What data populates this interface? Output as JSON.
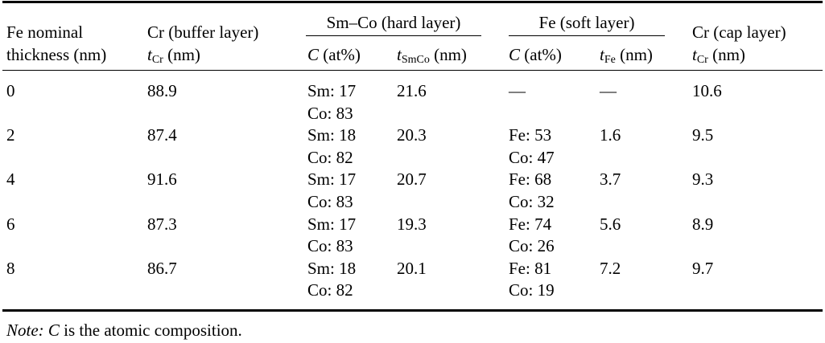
{
  "table": {
    "header": {
      "fe_thickness": [
        "Fe nominal",
        "thickness (nm)"
      ],
      "cr_buffer": {
        "title": "Cr (buffer layer)",
        "symbol": "t",
        "sub": "Cr",
        "unit": "(nm)"
      },
      "smco": {
        "title": "Sm–Co (hard layer)",
        "c_symbol": "C",
        "c_unit": "(at%)",
        "t_symbol": "t",
        "t_sub": "SmCo",
        "t_unit": "(nm)"
      },
      "fe": {
        "title": "Fe (soft layer)",
        "c_symbol": "C",
        "c_unit": "(at%)",
        "t_symbol": "t",
        "t_sub": "Fe",
        "t_unit": "(nm)"
      },
      "cr_cap": {
        "title": "Cr (cap layer)",
        "symbol": "t",
        "sub": "Cr",
        "unit": "(nm)"
      }
    },
    "rows": [
      {
        "fe_thickness": 0,
        "cr_buffer": 88.9,
        "smco_c": [
          "Sm: 17",
          "Co: 83"
        ],
        "t_smco": 21.6,
        "fe_c": [
          "—"
        ],
        "t_fe": "—",
        "cr_cap": 10.6
      },
      {
        "fe_thickness": 2,
        "cr_buffer": 87.4,
        "smco_c": [
          "Sm: 18",
          "Co: 82"
        ],
        "t_smco": 20.3,
        "fe_c": [
          "Fe: 53",
          "Co: 47"
        ],
        "t_fe": 1.6,
        "cr_cap": 9.5
      },
      {
        "fe_thickness": 4,
        "cr_buffer": 91.6,
        "smco_c": [
          "Sm: 17",
          "Co: 83"
        ],
        "t_smco": 20.7,
        "fe_c": [
          "Fe: 68",
          "Co: 32"
        ],
        "t_fe": 3.7,
        "cr_cap": 9.3
      },
      {
        "fe_thickness": 6,
        "cr_buffer": 87.3,
        "smco_c": [
          "Sm: 17",
          "Co: 83"
        ],
        "t_smco": 19.3,
        "fe_c": [
          "Fe: 74",
          "Co: 26"
        ],
        "t_fe": 5.6,
        "cr_cap": 8.9
      },
      {
        "fe_thickness": 8,
        "cr_buffer": 86.7,
        "smco_c": [
          "Sm: 18",
          "Co: 82"
        ],
        "t_smco": 20.1,
        "fe_c": [
          "Fe: 81",
          "Co: 19"
        ],
        "t_fe": 7.2,
        "cr_cap": 9.7
      }
    ],
    "note": {
      "label": "Note:",
      "symbol": "C",
      "text": "is the atomic composition."
    }
  }
}
